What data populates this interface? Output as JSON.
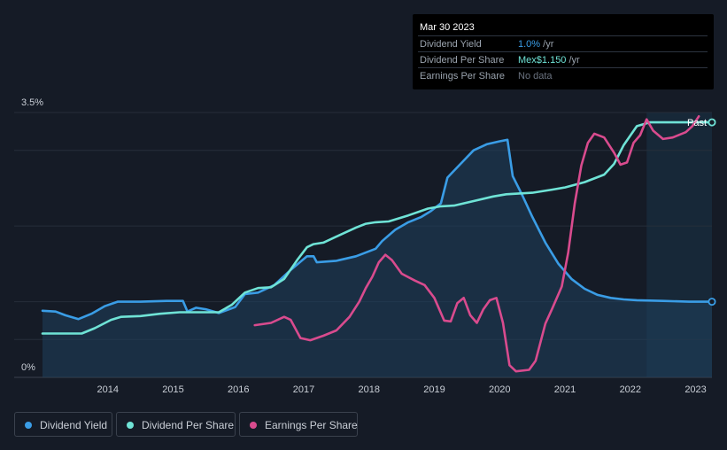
{
  "tooltip": {
    "date": "Mar 30 2023",
    "rows": [
      {
        "label": "Dividend Yield",
        "value": "1.0%",
        "unit": " /yr"
      },
      {
        "label": "Dividend Per Share",
        "value": "Mex$1.150",
        "unit": " /yr"
      },
      {
        "label": "Earnings Per Share",
        "value": "No data",
        "unit": ""
      }
    ]
  },
  "past_label": "Past",
  "legend": [
    {
      "label": "Dividend Yield",
      "color": "#3a9de6"
    },
    {
      "label": "Dividend Per Share",
      "color": "#6fe3d6"
    },
    {
      "label": "Earnings Per Share",
      "color": "#d94b8e"
    }
  ],
  "chart_data": {
    "type": "line",
    "title": "",
    "xlabel": "",
    "ylabel": "",
    "ylim": [
      0,
      3.5
    ],
    "y_tick_labels": [
      "3.5%",
      "0%"
    ],
    "x_tick_labels": [
      "2014",
      "2015",
      "2016",
      "2017",
      "2018",
      "2019",
      "2020",
      "2021",
      "2022",
      "2023"
    ],
    "xlim": [
      2013.0,
      2023.25
    ],
    "grid": true,
    "legend_position": "bottom-left",
    "series": [
      {
        "name": "Dividend Yield",
        "color": "#3a9de6",
        "area": true,
        "points": [
          [
            2013.0,
            0.88
          ],
          [
            2013.2,
            0.87
          ],
          [
            2013.35,
            0.82
          ],
          [
            2013.55,
            0.77
          ],
          [
            2013.75,
            0.84
          ],
          [
            2013.95,
            0.94
          ],
          [
            2014.15,
            1.0
          ],
          [
            2014.5,
            1.0
          ],
          [
            2014.9,
            1.01
          ],
          [
            2015.15,
            1.01
          ],
          [
            2015.22,
            0.87
          ],
          [
            2015.35,
            0.92
          ],
          [
            2015.5,
            0.9
          ],
          [
            2015.7,
            0.85
          ],
          [
            2015.95,
            0.93
          ],
          [
            2016.1,
            1.1
          ],
          [
            2016.3,
            1.12
          ],
          [
            2016.55,
            1.22
          ],
          [
            2016.8,
            1.42
          ],
          [
            2017.05,
            1.6
          ],
          [
            2017.15,
            1.6
          ],
          [
            2017.2,
            1.52
          ],
          [
            2017.5,
            1.54
          ],
          [
            2017.8,
            1.6
          ],
          [
            2018.1,
            1.7
          ],
          [
            2018.2,
            1.8
          ],
          [
            2018.4,
            1.95
          ],
          [
            2018.6,
            2.05
          ],
          [
            2018.8,
            2.12
          ],
          [
            2018.95,
            2.2
          ],
          [
            2019.1,
            2.3
          ],
          [
            2019.2,
            2.64
          ],
          [
            2019.4,
            2.82
          ],
          [
            2019.6,
            3.0
          ],
          [
            2019.8,
            3.08
          ],
          [
            2020.0,
            3.12
          ],
          [
            2020.12,
            3.14
          ],
          [
            2020.2,
            2.66
          ],
          [
            2020.35,
            2.4
          ],
          [
            2020.5,
            2.12
          ],
          [
            2020.7,
            1.78
          ],
          [
            2020.9,
            1.5
          ],
          [
            2021.1,
            1.3
          ],
          [
            2021.3,
            1.17
          ],
          [
            2021.5,
            1.09
          ],
          [
            2021.7,
            1.05
          ],
          [
            2021.9,
            1.03
          ],
          [
            2022.1,
            1.02
          ],
          [
            2022.5,
            1.01
          ],
          [
            2022.9,
            1.0
          ],
          [
            2023.25,
            1.0
          ]
        ]
      },
      {
        "name": "Dividend Per Share",
        "color": "#6fe3d6",
        "points": [
          [
            2013.0,
            0.58
          ],
          [
            2013.6,
            0.58
          ],
          [
            2013.8,
            0.65
          ],
          [
            2014.05,
            0.76
          ],
          [
            2014.2,
            0.8
          ],
          [
            2014.5,
            0.81
          ],
          [
            2014.8,
            0.84
          ],
          [
            2015.1,
            0.86
          ],
          [
            2015.4,
            0.86
          ],
          [
            2015.7,
            0.86
          ],
          [
            2015.9,
            0.96
          ],
          [
            2016.1,
            1.12
          ],
          [
            2016.3,
            1.18
          ],
          [
            2016.5,
            1.19
          ],
          [
            2016.7,
            1.3
          ],
          [
            2016.9,
            1.55
          ],
          [
            2017.05,
            1.72
          ],
          [
            2017.15,
            1.76
          ],
          [
            2017.3,
            1.78
          ],
          [
            2017.5,
            1.86
          ],
          [
            2017.8,
            1.98
          ],
          [
            2017.95,
            2.03
          ],
          [
            2018.1,
            2.05
          ],
          [
            2018.3,
            2.06
          ],
          [
            2018.6,
            2.14
          ],
          [
            2018.9,
            2.23
          ],
          [
            2019.1,
            2.26
          ],
          [
            2019.3,
            2.27
          ],
          [
            2019.6,
            2.33
          ],
          [
            2019.9,
            2.39
          ],
          [
            2020.1,
            2.42
          ],
          [
            2020.5,
            2.44
          ],
          [
            2020.8,
            2.48
          ],
          [
            2021.0,
            2.51
          ],
          [
            2021.3,
            2.58
          ],
          [
            2021.6,
            2.68
          ],
          [
            2021.75,
            2.82
          ],
          [
            2021.9,
            3.07
          ],
          [
            2022.1,
            3.32
          ],
          [
            2022.3,
            3.37
          ],
          [
            2022.6,
            3.37
          ],
          [
            2023.25,
            3.37
          ]
        ]
      },
      {
        "name": "Earnings Per Share",
        "color": "#d94b8e",
        "points": [
          [
            2016.25,
            0.69
          ],
          [
            2016.5,
            0.72
          ],
          [
            2016.7,
            0.8
          ],
          [
            2016.8,
            0.76
          ],
          [
            2016.95,
            0.52
          ],
          [
            2017.1,
            0.49
          ],
          [
            2017.3,
            0.55
          ],
          [
            2017.5,
            0.62
          ],
          [
            2017.7,
            0.8
          ],
          [
            2017.85,
            1.0
          ],
          [
            2017.95,
            1.18
          ],
          [
            2018.05,
            1.33
          ],
          [
            2018.15,
            1.52
          ],
          [
            2018.25,
            1.62
          ],
          [
            2018.35,
            1.55
          ],
          [
            2018.5,
            1.37
          ],
          [
            2018.7,
            1.28
          ],
          [
            2018.85,
            1.22
          ],
          [
            2019.0,
            1.05
          ],
          [
            2019.15,
            0.75
          ],
          [
            2019.25,
            0.74
          ],
          [
            2019.35,
            0.98
          ],
          [
            2019.45,
            1.05
          ],
          [
            2019.55,
            0.82
          ],
          [
            2019.65,
            0.72
          ],
          [
            2019.75,
            0.9
          ],
          [
            2019.85,
            1.02
          ],
          [
            2019.95,
            1.05
          ],
          [
            2020.05,
            0.72
          ],
          [
            2020.15,
            0.16
          ],
          [
            2020.25,
            0.08
          ],
          [
            2020.45,
            0.1
          ],
          [
            2020.55,
            0.22
          ],
          [
            2020.7,
            0.71
          ],
          [
            2020.8,
            0.9
          ],
          [
            2020.95,
            1.2
          ],
          [
            2021.05,
            1.65
          ],
          [
            2021.15,
            2.3
          ],
          [
            2021.25,
            2.8
          ],
          [
            2021.35,
            3.1
          ],
          [
            2021.45,
            3.22
          ],
          [
            2021.6,
            3.17
          ],
          [
            2021.75,
            2.97
          ],
          [
            2021.85,
            2.81
          ],
          [
            2021.95,
            2.84
          ],
          [
            2022.05,
            3.1
          ],
          [
            2022.15,
            3.2
          ],
          [
            2022.25,
            3.41
          ],
          [
            2022.35,
            3.26
          ],
          [
            2022.5,
            3.15
          ],
          [
            2022.65,
            3.17
          ],
          [
            2022.85,
            3.24
          ],
          [
            2022.95,
            3.32
          ],
          [
            2023.05,
            3.45
          ]
        ]
      }
    ]
  }
}
